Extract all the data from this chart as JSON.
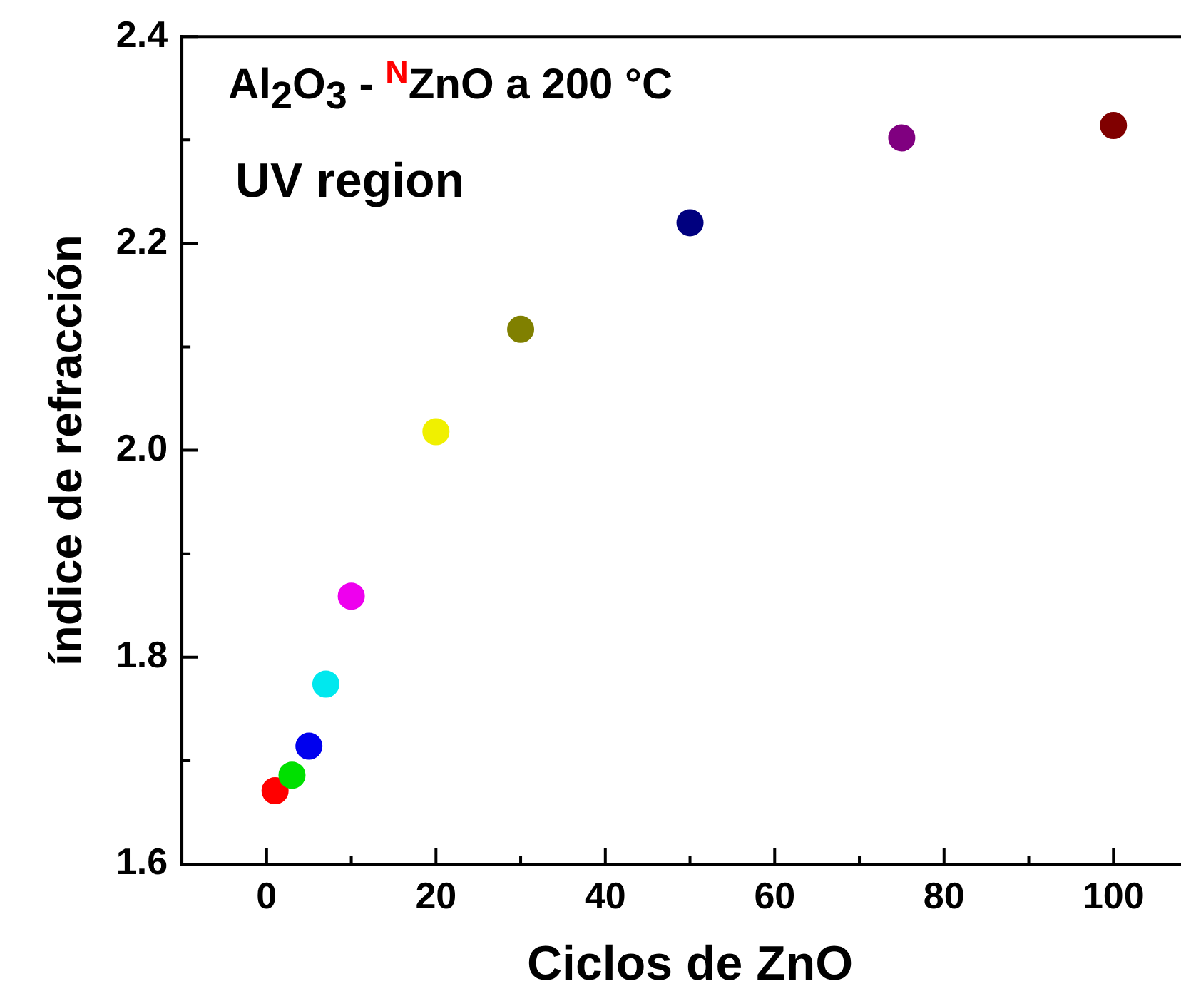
{
  "chart_data": {
    "type": "scatter",
    "xlabel": "Ciclos de ZnO",
    "ylabel": "índice de refracción",
    "annotations": [
      "Al$_{2}$O$_{3}$ - $^{N}$ZnO a 200 °C",
      "UV region"
    ],
    "x": [
      1,
      3,
      5,
      7,
      10,
      20,
      30,
      50,
      75,
      100
    ],
    "values": [
      1.671,
      1.686,
      1.714,
      1.774,
      1.859,
      2.018,
      2.117,
      2.22,
      2.302,
      2.314
    ],
    "colors": [
      "#ff0000",
      "#00e000",
      "#0000ee",
      "#00e8ee",
      "#ee00ee",
      "#f0f000",
      "#808000",
      "#00007f",
      "#800080",
      "#800000"
    ],
    "marker": "circle",
    "xlim": [
      -10,
      110
    ],
    "xticks": [
      0,
      {
        "value": 10,
        "label": null
      },
      20,
      {
        "value": 30,
        "label": null
      },
      40,
      {
        "value": 50,
        "label": null
      },
      60,
      {
        "value": 70,
        "label": null
      },
      80,
      {
        "value": 90,
        "label": null
      },
      100
    ],
    "ylim": [
      1.6,
      2.4
    ],
    "yticks": [
      {
        "value": 1.6,
        "label": "1.6"
      },
      {
        "value": 1.7,
        "label": null
      },
      {
        "value": 1.8,
        "label": "1.8"
      },
      {
        "value": 1.9,
        "label": null
      },
      {
        "value": 2.0,
        "label": "2.0"
      },
      {
        "value": 2.1,
        "label": null
      },
      {
        "value": 2.2,
        "label": "2.2"
      },
      {
        "value": 2.3,
        "label": null
      },
      {
        "value": 2.4,
        "label": "2.4"
      }
    ],
    "grid": false,
    "legend": false
  }
}
